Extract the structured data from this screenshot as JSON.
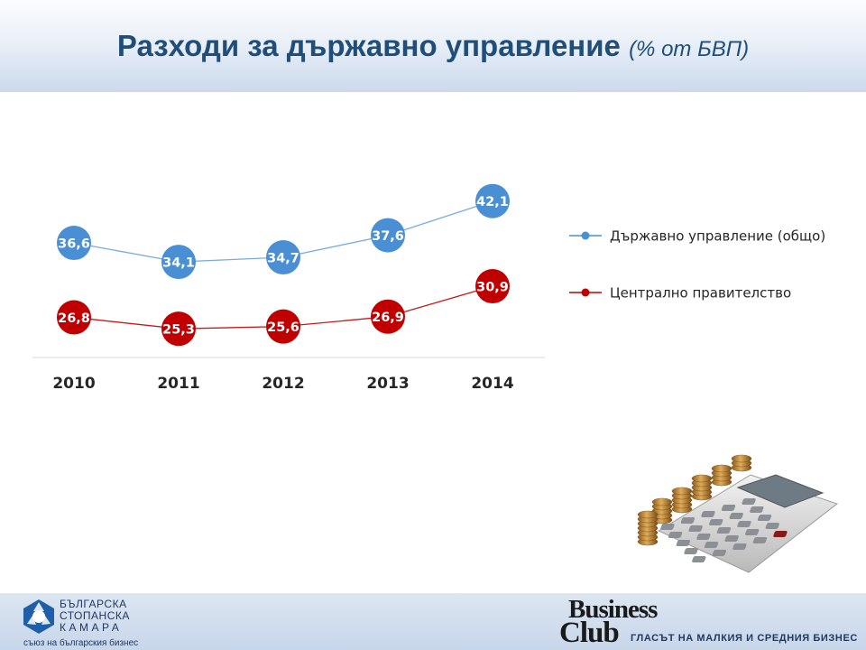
{
  "header": {
    "title": "Разходи за държавно управление",
    "subtitle": "(% от БВП)"
  },
  "chart_data": {
    "type": "line",
    "categories": [
      "2010",
      "2011",
      "2012",
      "2013",
      "2014"
    ],
    "series": [
      {
        "name": "Държавно управление (общо)",
        "values": [
          36.6,
          34.1,
          34.7,
          37.6,
          42.1
        ],
        "labels": [
          "36,6",
          "34,1",
          "34,7",
          "37,6",
          "42,1"
        ],
        "color": "#4a8fd4"
      },
      {
        "name": "Централно правителство",
        "values": [
          26.8,
          25.3,
          25.6,
          26.9,
          30.9
        ],
        "labels": [
          "26,8",
          "25,3",
          "25,6",
          "26,9",
          "30,9"
        ],
        "color": "#c00000"
      }
    ],
    "title": "Разходи за държавно управление (% от БВП)",
    "xlabel": "",
    "ylabel": "",
    "ylim": [
      20,
      46
    ],
    "grid": false,
    "legend": "right"
  },
  "footer": {
    "left_logo": {
      "lines": [
        "БЪЛГАРСКА",
        "СТОПАНСКА",
        "КАМАРА"
      ],
      "slogan": "съюз на българския бизнес"
    },
    "right_logo": {
      "word1": "Business",
      "word2": "Club",
      "slogan": "ГЛАСЪТ НА МАЛКИЯ И СРЕДНИЯ БИЗНЕС"
    }
  },
  "colors": {
    "title": "#1f4e79",
    "header_gradient_end": "#cbd9ec",
    "footer_band": "#c7d6ea"
  },
  "icons": {
    "footer_left": "bsk-logo-icon",
    "illustration": "calculator-coins-icon"
  }
}
